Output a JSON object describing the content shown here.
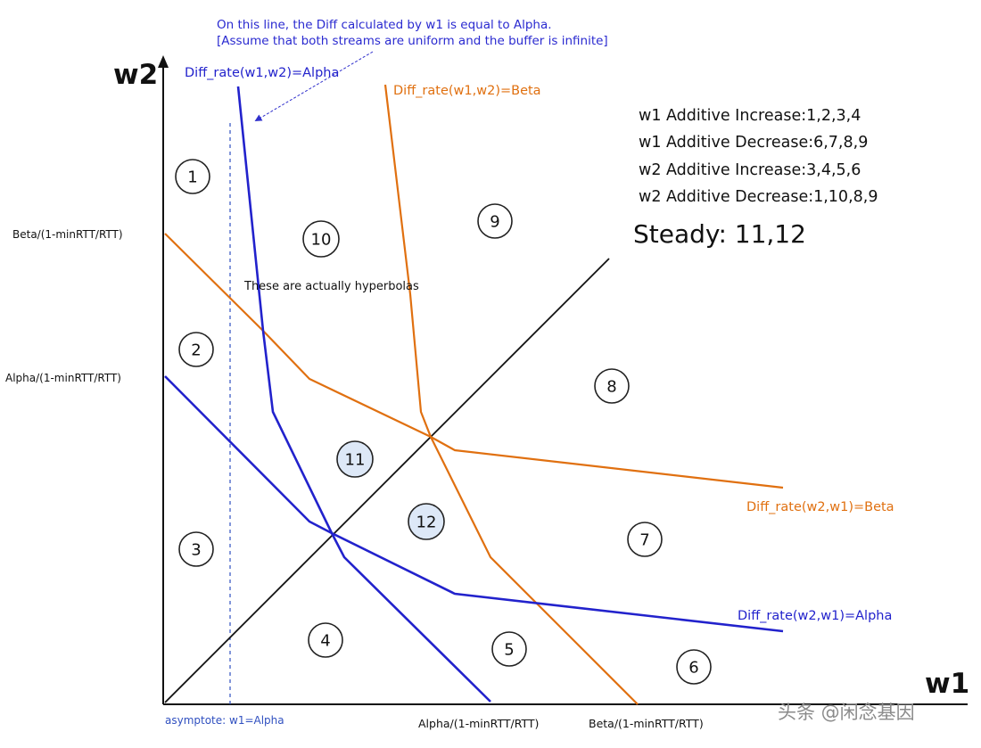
{
  "axes": {
    "x_label": "w1",
    "y_label": "w2",
    "y_tick_beta": "Beta/(1-minRTT/RTT)",
    "y_tick_alpha": "Alpha/(1-minRTT/RTT)",
    "x_tick_alpha": "Alpha/(1-minRTT/RTT)",
    "x_tick_beta": "Beta/(1-minRTT/RTT)",
    "asymptote_label": "asymptote:  w1=Alpha"
  },
  "curves": {
    "alpha_w1w2": "Diff_rate(w1,w2)=Alpha",
    "beta_w1w2": "Diff_rate(w1,w2)=Beta",
    "beta_w2w1": "Diff_rate(w2,w1)=Beta",
    "alpha_w2w1": "Diff_rate(w2,w1)=Alpha"
  },
  "annotations": {
    "note_line1": "On this line, the Diff calculated by w1 is equal to Alpha.",
    "note_line2": "[Assume that both streams are uniform and the buffer is infinite]",
    "hyperbola_note": "These are actually hyperbolas"
  },
  "legend": {
    "items": [
      "w1 Additive Increase:1,2,3,4",
      "w1 Additive Decrease:6,7,8,9",
      "w2 Additive Increase:3,4,5,6",
      "w2 Additive Decrease:1,10,8,9"
    ],
    "steady": "Steady: 11,12"
  },
  "regions": [
    "1",
    "2",
    "3",
    "4",
    "5",
    "6",
    "7",
    "8",
    "9",
    "10",
    "11",
    "12"
  ],
  "watermark": "头条 @闲念基因",
  "colors": {
    "alpha": "#2222cc",
    "beta": "#e07010",
    "diagonal": "#111111",
    "highlight": "#dde8f7"
  }
}
